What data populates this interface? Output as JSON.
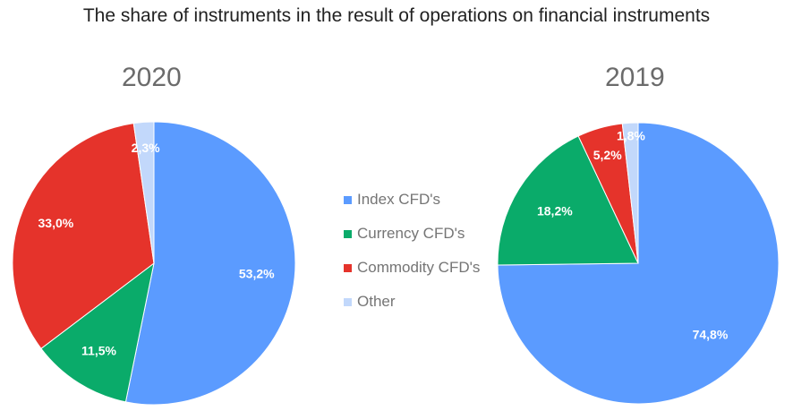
{
  "title": "The share of instruments in the result of operations on financial instruments",
  "legend": [
    {
      "label": "Index CFD's",
      "color": "#5b9bff"
    },
    {
      "label": "Currency CFD's",
      "color": "#0aab6a"
    },
    {
      "label": "Commodity CFD's",
      "color": "#e5332b"
    },
    {
      "label": "Other",
      "color": "#c2d8fb"
    }
  ],
  "chart_data": [
    {
      "type": "pie",
      "title": "2020",
      "categories": [
        "Index CFD's",
        "Currency CFD's",
        "Commodity CFD's",
        "Other"
      ],
      "values": [
        53.2,
        11.5,
        33.0,
        2.3
      ],
      "labels": [
        "53,2%",
        "11,5%",
        "33,0%",
        "2,3%"
      ],
      "colors": [
        "#5b9bff",
        "#0aab6a",
        "#e5332b",
        "#c2d8fb"
      ]
    },
    {
      "type": "pie",
      "title": "2019",
      "categories": [
        "Index CFD's",
        "Currency CFD's",
        "Commodity CFD's",
        "Other"
      ],
      "values": [
        74.8,
        18.2,
        5.2,
        1.8
      ],
      "labels": [
        "74,8%",
        "18,2%",
        "5,2%",
        "1,8%"
      ],
      "colors": [
        "#5b9bff",
        "#0aab6a",
        "#e5332b",
        "#c2d8fb"
      ]
    }
  ]
}
